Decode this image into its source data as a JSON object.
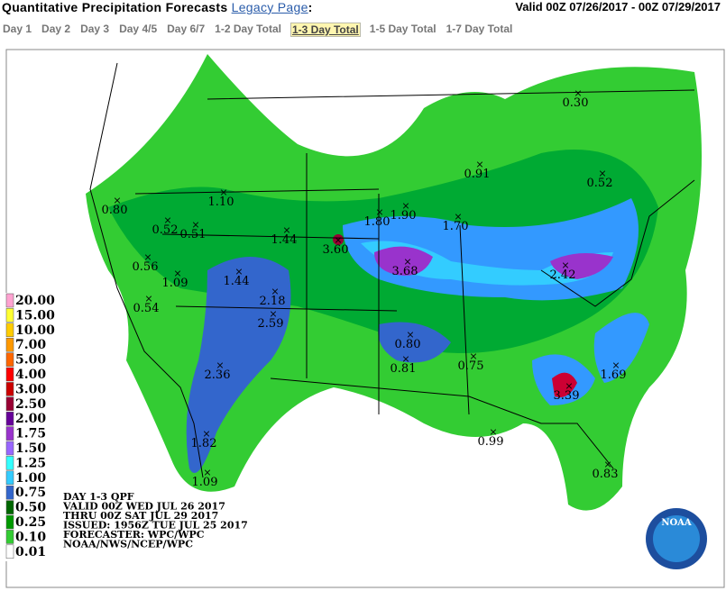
{
  "header": {
    "title": "Quantitative Precipitation Forecasts",
    "link": "Legacy Page",
    "separator": ":",
    "valid": "Valid 00Z 07/26/2017 - 00Z 07/29/2017"
  },
  "nav": [
    "Day 1",
    "Day 2",
    "Day 3",
    "Day 4/5",
    "Day 6/7",
    "1-2 Day Total",
    "1-3 Day Total",
    "1-5 Day Total",
    "1-7 Day Total"
  ],
  "legend": [
    "20.00",
    "15.00",
    "10.00",
    "7.00",
    "5.00",
    "4.00",
    "3.00",
    "2.50",
    "2.00",
    "1.75",
    "1.50",
    "1.25",
    "1.00",
    "0.75",
    "0.50",
    "0.25",
    "0.10",
    "0.01"
  ],
  "map_labels": [
    "0.80",
    "1.10",
    "0.52",
    "0.51",
    "0.56",
    "1.09",
    "0.54",
    "1.44",
    "1.44",
    "3.60",
    "1.80",
    "1.90",
    "1.70",
    "0.91",
    "0.30",
    "0.52",
    "3.68",
    "2.42",
    "2.18",
    "2.59",
    "2.36",
    "1.82",
    "1.09",
    "0.80",
    "0.81",
    "0.75",
    "3.39",
    "1.69",
    "0.99",
    "0.83"
  ],
  "info": [
    "DAY 1-3 QPF",
    "VALID 00Z WED JUL 26 2017",
    "THRU 00Z SAT JUL 29 2017",
    "ISSUED: 1956Z TUE JUL 25 2017",
    "FORECASTER: WPC/WPC",
    "NOAA/NWS/NCEP/WPC"
  ]
}
